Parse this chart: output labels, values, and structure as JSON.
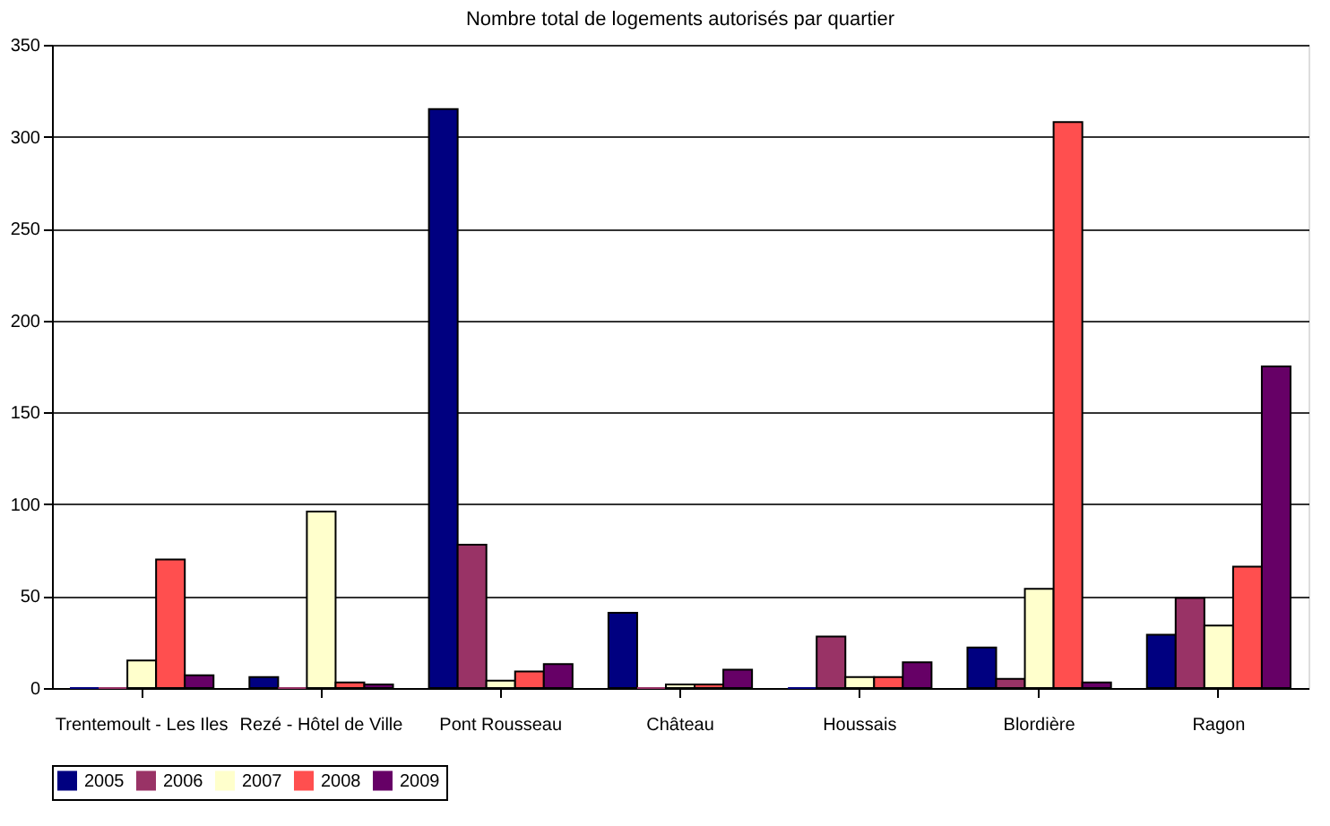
{
  "chart_data": {
    "type": "bar",
    "title": "Nombre total de logements autorisés par quartier",
    "categories": [
      "Trentemoult - Les Iles",
      "Rezé - Hôtel de Ville",
      "Pont Rousseau",
      "Château",
      "Houssais",
      "Blordière",
      "Ragon"
    ],
    "series": [
      {
        "name": "2005",
        "color": "#000080",
        "values": [
          0,
          6,
          315,
          41,
          0,
          22,
          29
        ]
      },
      {
        "name": "2006",
        "color": "#993366",
        "values": [
          0,
          0,
          78,
          0,
          28,
          5,
          49
        ]
      },
      {
        "name": "2007",
        "color": "#ffffcc",
        "values": [
          15,
          96,
          4,
          2,
          6,
          54,
          34
        ]
      },
      {
        "name": "2008",
        "color": "#ff4f4f",
        "values": [
          70,
          3,
          9,
          2,
          6,
          308,
          66
        ]
      },
      {
        "name": "2009",
        "color": "#660066",
        "values": [
          7,
          2,
          13,
          10,
          14,
          3,
          175
        ]
      }
    ],
    "ylim": [
      0,
      350
    ],
    "yticks": [
      0,
      50,
      100,
      150,
      200,
      250,
      300,
      350
    ],
    "grid": "y",
    "legend": "bottom"
  }
}
